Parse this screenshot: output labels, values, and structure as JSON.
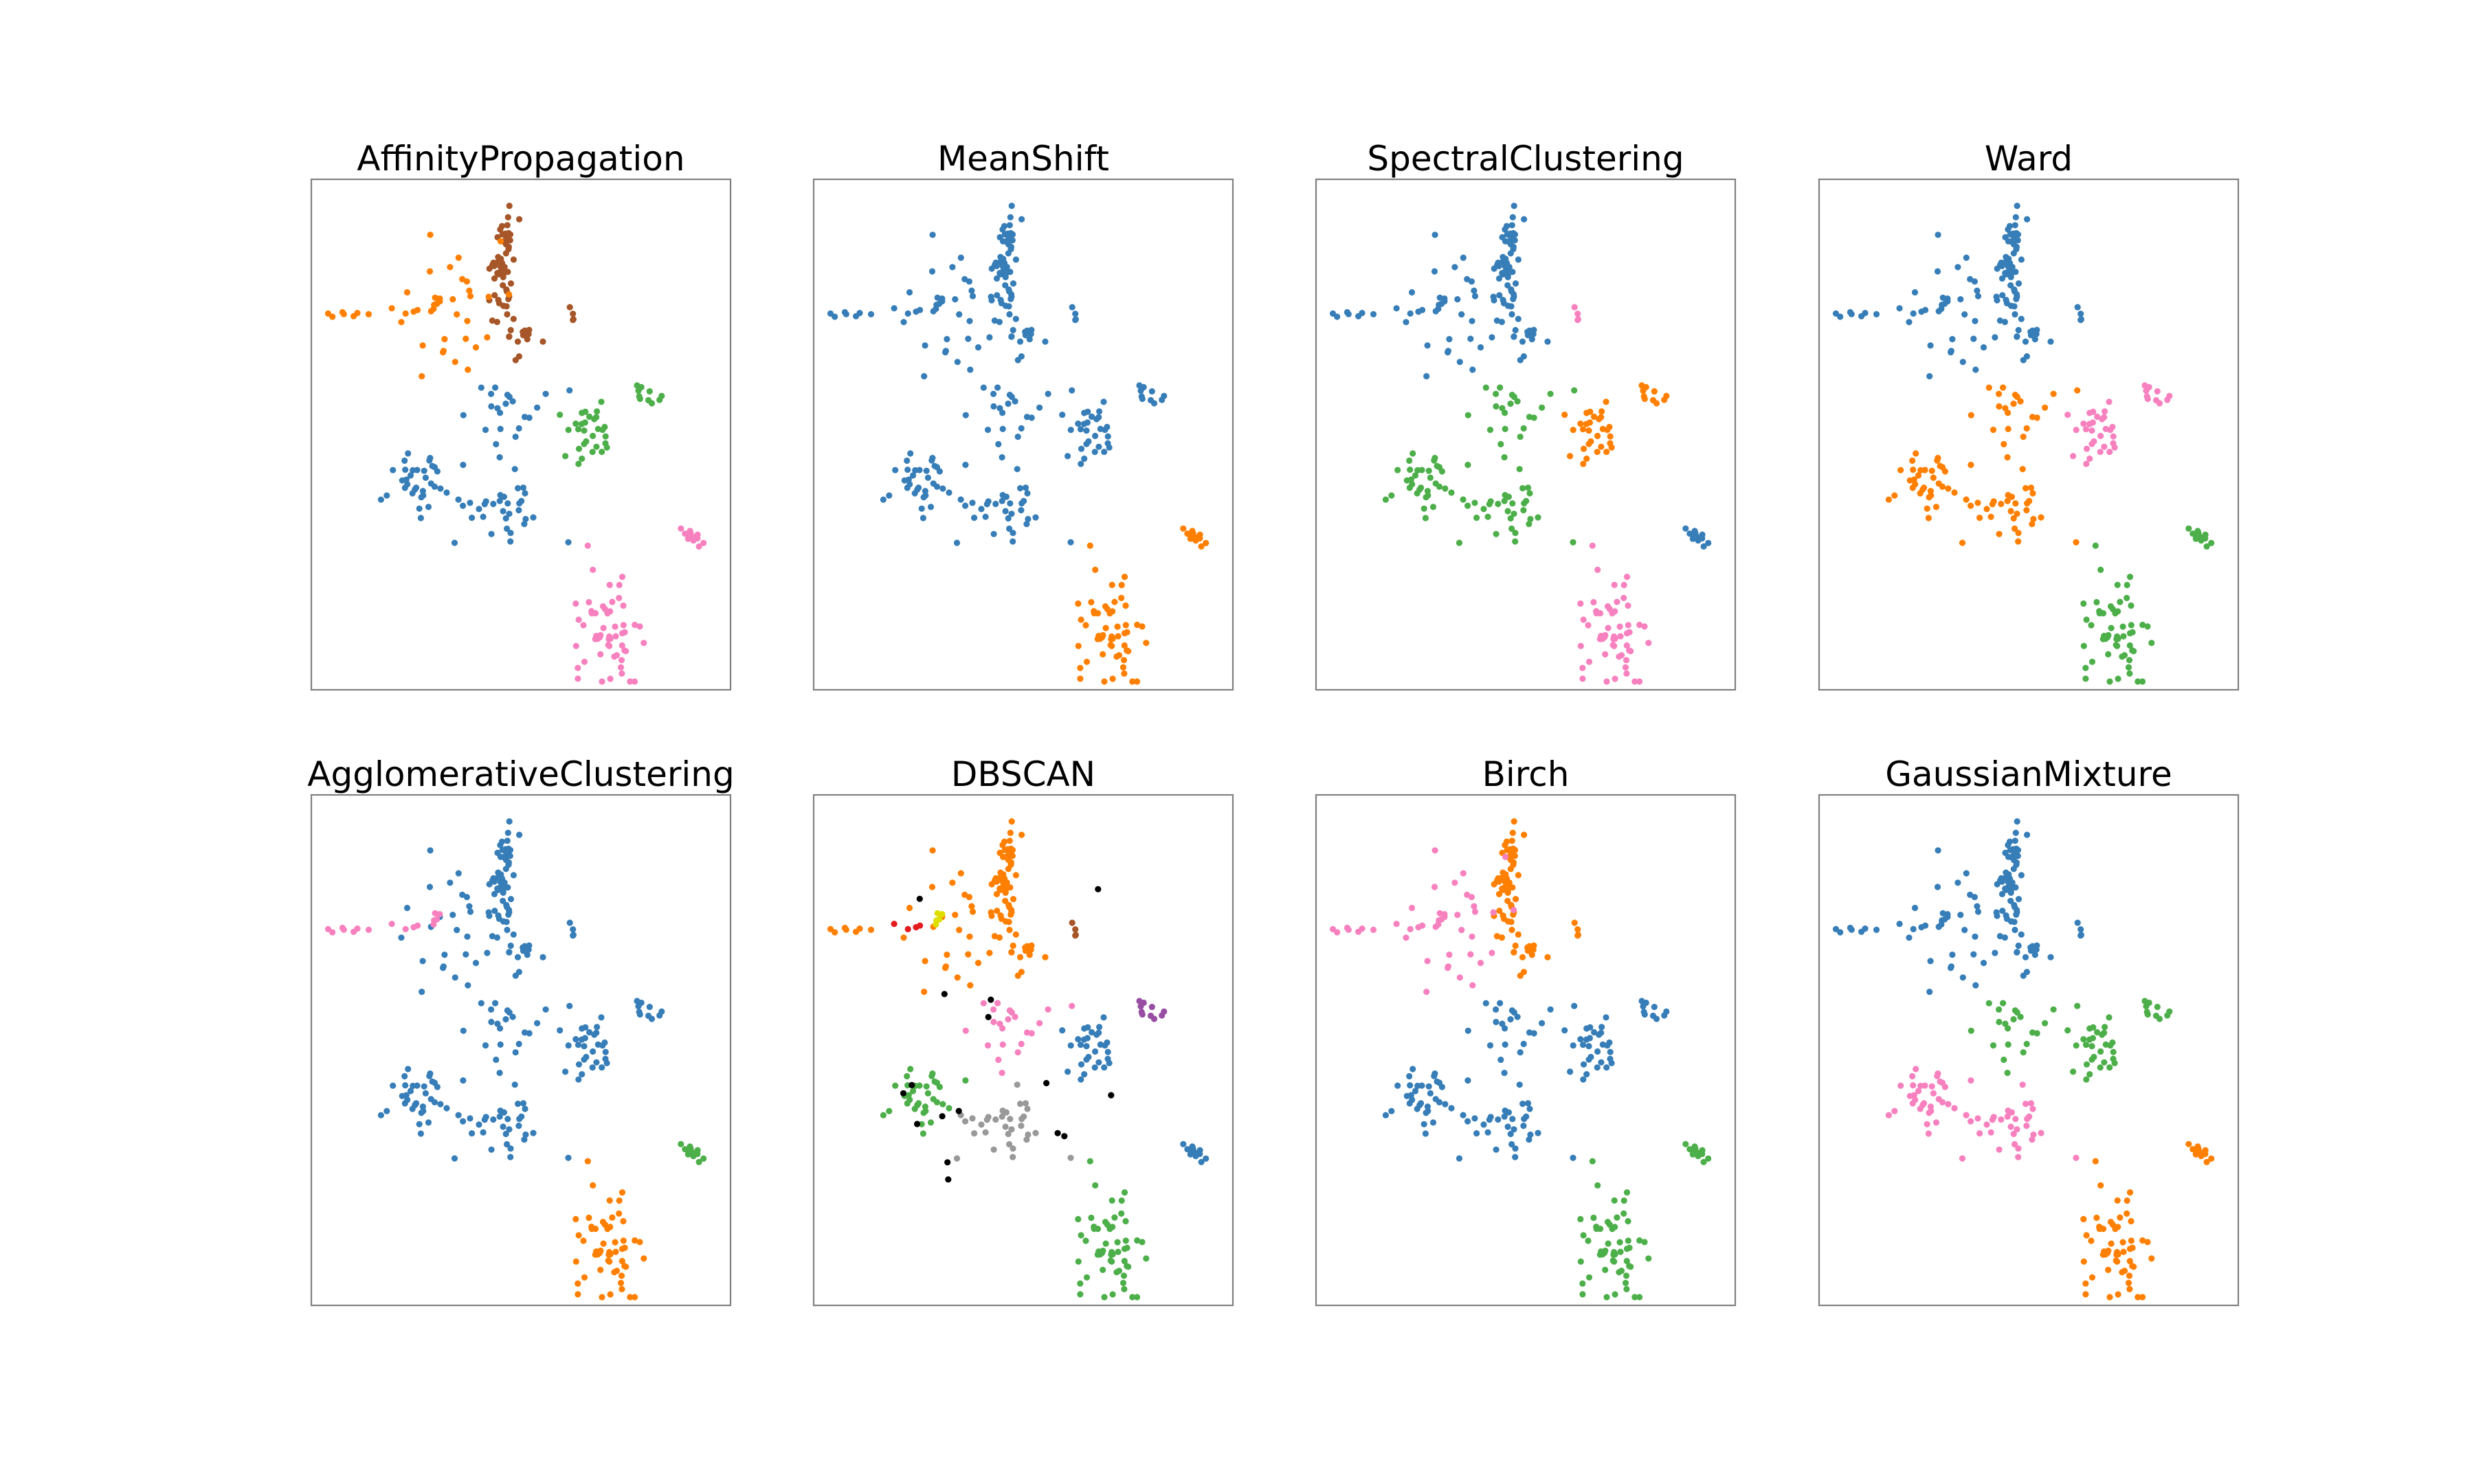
{
  "figure": {
    "panel_titles": [
      "AffinityPropagation",
      "MeanShift",
      "SpectralClustering",
      "Ward",
      "AgglomerativeClustering",
      "DBSCAN",
      "Birch",
      "GaussianMixture"
    ]
  },
  "colors": {
    "tab_blue": "#377eb8",
    "tab_orange": "#ff7f00",
    "tab_green": "#4daf4a",
    "tab_pink": "#f781bf",
    "tab_brown": "#a65628",
    "tab_purple": "#984ea3",
    "tab_gray": "#999999",
    "tab_red": "#e41a1c",
    "tab_yellow": "#dede00",
    "noise_black": "#000000"
  },
  "chart_data": [
    {
      "type": "scatter",
      "title": "AffinityPropagation",
      "grid": false,
      "axes_ticks": false,
      "cluster_colors": {
        "tail_left": "tab_orange",
        "upper_left": "tab_orange",
        "upper_trunk": "tab_brown",
        "upper_right_blob": "tab_brown",
        "small_top_right": "tab_brown",
        "lower_left_blob": "tab_blue",
        "lower_center_blob": "tab_blue",
        "lower_trunk": "tab_blue",
        "mid_right_blob": "tab_green",
        "far_right_arm": "tab_green",
        "diag_streak": "tab_pink",
        "bottom_blob": "tab_pink"
      }
    },
    {
      "type": "scatter",
      "title": "MeanShift",
      "grid": false,
      "axes_ticks": false,
      "cluster_colors": {
        "tail_left": "tab_blue",
        "upper_left": "tab_blue",
        "upper_trunk": "tab_blue",
        "upper_right_blob": "tab_blue",
        "small_top_right": "tab_blue",
        "lower_left_blob": "tab_blue",
        "lower_center_blob": "tab_blue",
        "lower_trunk": "tab_blue",
        "mid_right_blob": "tab_blue",
        "far_right_arm": "tab_blue",
        "diag_streak": "tab_orange",
        "bottom_blob": "tab_orange"
      }
    },
    {
      "type": "scatter",
      "title": "SpectralClustering",
      "grid": false,
      "axes_ticks": false,
      "cluster_colors": {
        "tail_left": "tab_blue",
        "upper_left": "tab_blue",
        "upper_trunk": "tab_blue",
        "upper_right_blob": "tab_blue",
        "small_top_right": "tab_pink",
        "lower_left_blob": "tab_green",
        "lower_center_blob": "tab_green",
        "lower_trunk": "tab_green",
        "mid_right_blob": "tab_orange",
        "far_right_arm": "tab_orange",
        "diag_streak": "tab_blue",
        "bottom_blob": "tab_pink"
      }
    },
    {
      "type": "scatter",
      "title": "Ward",
      "grid": false,
      "axes_ticks": false,
      "cluster_colors": {
        "tail_left": "tab_blue",
        "upper_left": "tab_blue",
        "upper_trunk": "tab_blue",
        "upper_right_blob": "tab_blue",
        "small_top_right": "tab_blue",
        "lower_left_blob": "tab_orange",
        "lower_center_blob": "tab_orange",
        "lower_trunk": "tab_orange",
        "mid_right_blob": "tab_pink",
        "far_right_arm": "tab_pink",
        "diag_streak": "tab_green",
        "bottom_blob": "tab_green"
      }
    },
    {
      "type": "scatter",
      "title": "AgglomerativeClustering",
      "grid": false,
      "axes_ticks": false,
      "cluster_colors": {
        "tail_left": "tab_pink",
        "upper_left": "tab_blue",
        "upper_trunk": "tab_blue",
        "upper_right_blob": "tab_blue",
        "small_top_right": "tab_blue",
        "lower_left_blob": "tab_blue",
        "lower_center_blob": "tab_blue",
        "lower_trunk": "tab_blue",
        "mid_right_blob": "tab_blue",
        "far_right_arm": "tab_blue",
        "diag_streak": "tab_green",
        "bottom_blob": "tab_orange"
      }
    },
    {
      "type": "scatter",
      "title": "DBSCAN",
      "grid": false,
      "axes_ticks": false,
      "cluster_colors": {
        "tail_left": "tab_orange",
        "tail_mid": "tab_red",
        "tail_right": "tab_yellow",
        "upper_left": "tab_orange",
        "upper_trunk": "tab_orange",
        "upper_right_blob": "tab_orange",
        "small_top_right": "tab_brown",
        "lower_left_blob": "tab_green",
        "lower_center_blob": "tab_gray",
        "lower_trunk": "tab_pink",
        "mid_right_blob": "tab_blue",
        "far_right_arm": "tab_purple",
        "diag_streak": "tab_blue",
        "bottom_blob": "tab_green",
        "noise": "noise_black"
      }
    },
    {
      "type": "scatter",
      "title": "Birch",
      "grid": false,
      "axes_ticks": false,
      "cluster_colors": {
        "tail_left": "tab_pink",
        "upper_left": "tab_pink",
        "upper_trunk": "tab_orange",
        "upper_right_blob": "tab_orange",
        "small_top_right": "tab_orange",
        "lower_left_blob": "tab_blue",
        "lower_center_blob": "tab_blue",
        "lower_trunk": "tab_blue",
        "mid_right_blob": "tab_blue",
        "far_right_arm": "tab_blue",
        "diag_streak": "tab_green",
        "bottom_blob": "tab_green"
      }
    },
    {
      "type": "scatter",
      "title": "GaussianMixture",
      "grid": false,
      "axes_ticks": false,
      "cluster_colors": {
        "tail_left": "tab_blue",
        "upper_left": "tab_blue",
        "upper_trunk": "tab_blue",
        "upper_right_blob": "tab_blue",
        "small_top_right": "tab_blue",
        "lower_left_blob": "tab_pink",
        "lower_center_blob": "tab_pink",
        "lower_trunk": "tab_green",
        "mid_right_blob": "tab_green",
        "far_right_arm": "tab_green",
        "diag_streak": "tab_orange",
        "bottom_blob": "tab_orange"
      }
    }
  ]
}
